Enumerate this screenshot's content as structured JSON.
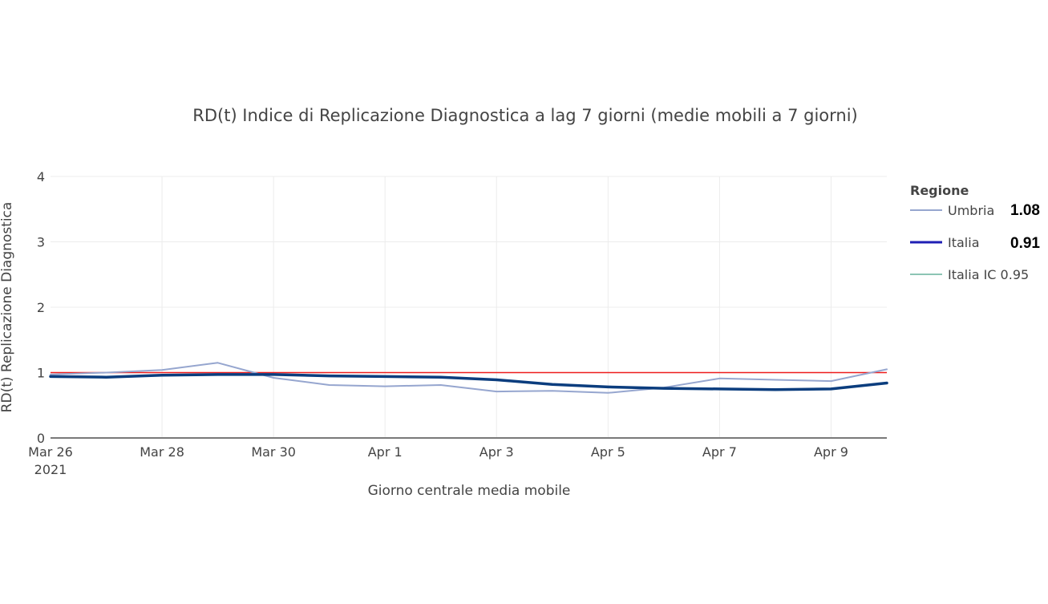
{
  "chart_data": {
    "type": "line",
    "title": "RD(t) Indice di Replicazione Diagnostica a lag 7 giorni (medie mobili a 7 giorni)",
    "xlabel": "Giorno centrale media mobile",
    "ylabel": "RD(t) Replicazione Diagnostica",
    "x": [
      "2021-03-26",
      "2021-03-27",
      "2021-03-28",
      "2021-03-29",
      "2021-03-30",
      "2021-03-31",
      "2021-04-01",
      "2021-04-02",
      "2021-04-03",
      "2021-04-04",
      "2021-04-05",
      "2021-04-06",
      "2021-04-07",
      "2021-04-08",
      "2021-04-09",
      "2021-04-10"
    ],
    "x_ticks": [
      {
        "date": "2021-03-26",
        "label": "Mar 26",
        "sublabel": "2021"
      },
      {
        "date": "2021-03-28",
        "label": "Mar 28",
        "sublabel": ""
      },
      {
        "date": "2021-03-30",
        "label": "Mar 30",
        "sublabel": ""
      },
      {
        "date": "2021-04-01",
        "label": "Apr 1",
        "sublabel": ""
      },
      {
        "date": "2021-04-03",
        "label": "Apr 3",
        "sublabel": ""
      },
      {
        "date": "2021-04-05",
        "label": "Apr 5",
        "sublabel": ""
      },
      {
        "date": "2021-04-07",
        "label": "Apr 7",
        "sublabel": ""
      },
      {
        "date": "2021-04-09",
        "label": "Apr 9",
        "sublabel": ""
      }
    ],
    "xlim": [
      "2021-03-26",
      "2021-04-10"
    ],
    "ylim": [
      0,
      4
    ],
    "y_ticks": [
      "0",
      "1",
      "2",
      "3",
      "4"
    ],
    "grid": true,
    "legend": {
      "title": "Regione",
      "position": "right",
      "items": [
        {
          "name": "Umbria",
          "value_label": "1.08",
          "color": "#96a6cf"
        },
        {
          "name": "Italia",
          "value_label": "0.91",
          "color": "#1f1fb4"
        },
        {
          "name": "Italia IC 0.95",
          "value_label": "",
          "color": "#8cc5b4"
        }
      ]
    },
    "series": [
      {
        "name": "Umbria",
        "color": "#96a6cf",
        "values": [
          0.97,
          1.0,
          1.04,
          1.15,
          0.92,
          0.81,
          0.79,
          0.81,
          0.71,
          0.72,
          0.69,
          0.77,
          0.91,
          0.89,
          0.87,
          1.05
        ]
      },
      {
        "name": "Italia",
        "color": "#0b3d7e",
        "values": [
          0.94,
          0.93,
          0.96,
          0.97,
          0.97,
          0.95,
          0.94,
          0.93,
          0.89,
          0.82,
          0.78,
          0.76,
          0.75,
          0.74,
          0.75,
          0.84
        ]
      }
    ],
    "reference_line": {
      "y": 1,
      "color": "#ee1c1c"
    }
  }
}
